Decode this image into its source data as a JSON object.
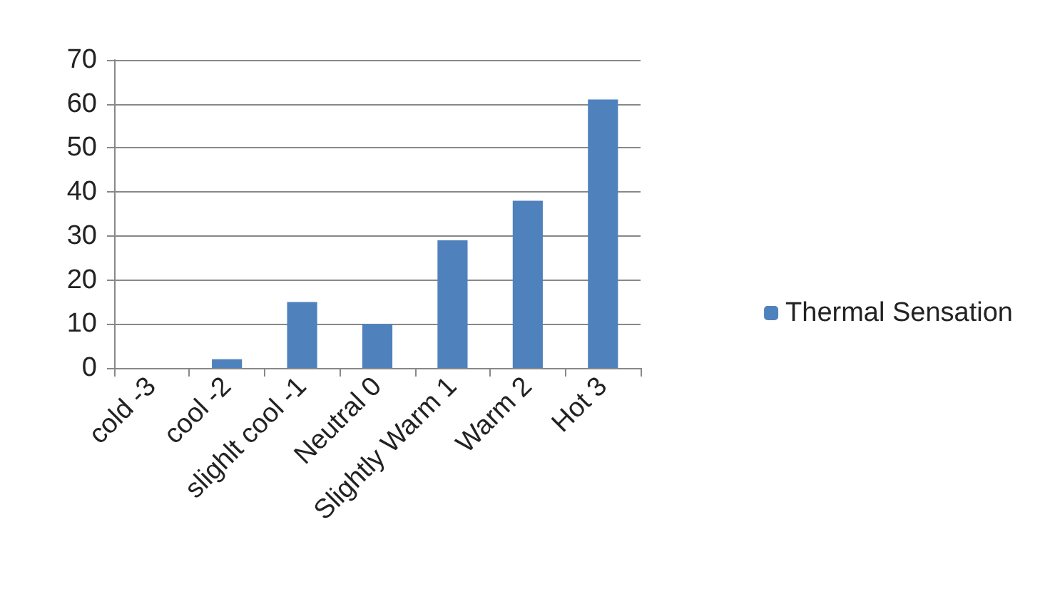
{
  "chart_data": {
    "type": "bar",
    "categories": [
      "cold -3",
      "cool -2",
      "slighlt cool -1",
      "Neutral 0",
      "Slightly Warm 1",
      "Warm 2",
      "Hot 3"
    ],
    "series": [
      {
        "name": "Thermal Sensation",
        "color": "#4f81bd",
        "values": [
          0,
          2,
          15,
          10,
          29,
          38,
          61
        ]
      }
    ],
    "ylim": [
      0,
      70
    ],
    "yticks": [
      0,
      10,
      20,
      30,
      40,
      50,
      60,
      70
    ],
    "grid": "y",
    "legend": "right"
  }
}
